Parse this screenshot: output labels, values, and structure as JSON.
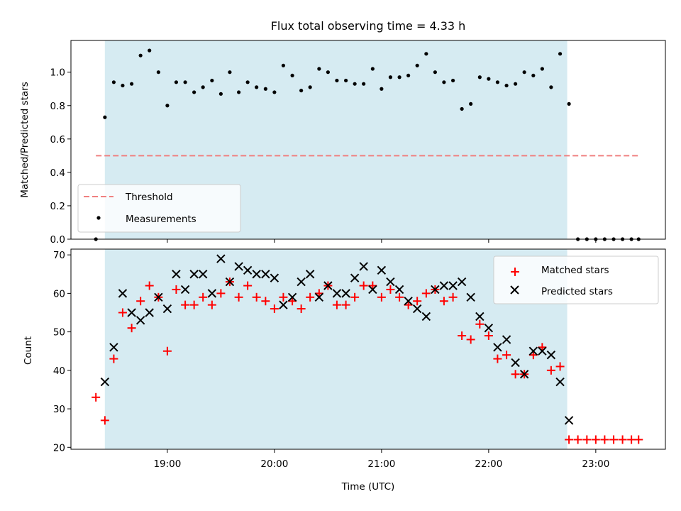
{
  "chart_data": [
    {
      "type": "scatter",
      "title": "Flux total observing time = 4.33 h",
      "xlabel": "",
      "ylabel": "Matched/Predicted stars",
      "xlim": [
        18.1,
        23.65
      ],
      "ylim": [
        0.0,
        1.19
      ],
      "yticks": [
        {
          "value": 0.0,
          "label": "0.0"
        },
        {
          "value": 0.2,
          "label": "0.2"
        },
        {
          "value": 0.4,
          "label": "0.4"
        },
        {
          "value": 0.6,
          "label": "0.6"
        },
        {
          "value": 0.8,
          "label": "0.8"
        },
        {
          "value": 1.0,
          "label": "1.0"
        }
      ],
      "observing_span": [
        18.4167,
        22.7333
      ],
      "span_color": "#add8e6",
      "threshold": {
        "name": "Threshold",
        "value": 0.5,
        "x_range": [
          18.333,
          23.4
        ],
        "color": "#f08080"
      },
      "measurements": {
        "name": "Measurements",
        "color": "#000000",
        "x": [
          18.333,
          18.417,
          18.5,
          18.583,
          18.667,
          18.75,
          18.833,
          18.917,
          19.0,
          19.083,
          19.167,
          19.25,
          19.333,
          19.417,
          19.5,
          19.583,
          19.667,
          19.75,
          19.833,
          19.917,
          20.0,
          20.083,
          20.167,
          20.25,
          20.333,
          20.417,
          20.5,
          20.583,
          20.667,
          20.75,
          20.833,
          20.917,
          21.0,
          21.083,
          21.167,
          21.25,
          21.333,
          21.417,
          21.5,
          21.583,
          21.667,
          21.75,
          21.833,
          21.917,
          22.0,
          22.083,
          22.167,
          22.25,
          22.333,
          22.417,
          22.5,
          22.583,
          22.667,
          22.75,
          22.833,
          22.917,
          23.0,
          23.083,
          23.167,
          23.25,
          23.333,
          23.4
        ],
        "y": [
          0.0,
          0.73,
          0.94,
          0.92,
          0.93,
          1.1,
          1.13,
          1.0,
          0.8,
          0.94,
          0.94,
          0.88,
          0.91,
          0.95,
          0.87,
          1.0,
          0.88,
          0.94,
          0.91,
          0.9,
          0.88,
          1.04,
          0.98,
          0.89,
          0.91,
          1.02,
          1.0,
          0.95,
          0.95,
          0.93,
          0.93,
          1.02,
          0.9,
          0.97,
          0.97,
          0.98,
          1.04,
          1.11,
          1.0,
          0.94,
          0.95,
          0.78,
          0.81,
          0.97,
          0.96,
          0.94,
          0.92,
          0.93,
          1.0,
          0.98,
          1.02,
          0.91,
          1.11,
          0.81,
          0.0,
          0.0,
          0.0,
          0.0,
          0.0,
          0.0,
          0.0,
          0.0
        ]
      },
      "legend": {
        "position": "lower left",
        "entries": [
          "Threshold",
          "Measurements"
        ]
      }
    },
    {
      "type": "scatter",
      "title": "",
      "xlabel": "Time (UTC)",
      "ylabel": "Count",
      "xlim": [
        18.1,
        23.65
      ],
      "ylim": [
        19.5,
        71.5
      ],
      "xticks": [
        {
          "value": 19.0,
          "label": "19:00"
        },
        {
          "value": 20.0,
          "label": "20:00"
        },
        {
          "value": 21.0,
          "label": "21:00"
        },
        {
          "value": 22.0,
          "label": "22:00"
        },
        {
          "value": 23.0,
          "label": "23:00"
        }
      ],
      "yticks": [
        {
          "value": 20,
          "label": "20"
        },
        {
          "value": 30,
          "label": "30"
        },
        {
          "value": 40,
          "label": "40"
        },
        {
          "value": 50,
          "label": "50"
        },
        {
          "value": 60,
          "label": "60"
        },
        {
          "value": 70,
          "label": "70"
        }
      ],
      "observing_span": [
        18.4167,
        22.7333
      ],
      "span_color": "#add8e6",
      "series": [
        {
          "name": "Matched stars",
          "marker": "+",
          "color": "#ff0000",
          "x": [
            18.333,
            18.417,
            18.5,
            18.583,
            18.667,
            18.75,
            18.833,
            18.917,
            19.0,
            19.083,
            19.167,
            19.25,
            19.333,
            19.417,
            19.5,
            19.583,
            19.667,
            19.75,
            19.833,
            19.917,
            20.0,
            20.083,
            20.167,
            20.25,
            20.333,
            20.417,
            20.5,
            20.583,
            20.667,
            20.75,
            20.833,
            20.917,
            21.0,
            21.083,
            21.167,
            21.25,
            21.333,
            21.417,
            21.5,
            21.583,
            21.667,
            21.75,
            21.833,
            21.917,
            22.0,
            22.083,
            22.167,
            22.25,
            22.333,
            22.417,
            22.5,
            22.583,
            22.667,
            22.75,
            22.833,
            22.917,
            23.0,
            23.083,
            23.167,
            23.25,
            23.333,
            23.4
          ],
          "y": [
            33,
            27,
            43,
            55,
            51,
            58,
            62,
            59,
            45,
            61,
            57,
            57,
            59,
            57,
            60,
            63,
            59,
            62,
            59,
            58,
            56,
            59,
            58,
            56,
            59,
            60,
            62,
            57,
            57,
            59,
            62,
            62,
            59,
            61,
            59,
            57,
            58,
            60,
            61,
            58,
            59,
            49,
            48,
            52,
            49,
            43,
            44,
            39,
            39,
            44,
            46,
            40,
            41,
            22,
            22,
            22,
            22,
            22,
            22,
            22,
            22,
            22
          ]
        },
        {
          "name": "Predicted stars",
          "marker": "x",
          "color": "#000000",
          "x": [
            18.417,
            18.5,
            18.583,
            18.667,
            18.75,
            18.833,
            18.917,
            19.0,
            19.083,
            19.167,
            19.25,
            19.333,
            19.417,
            19.5,
            19.583,
            19.667,
            19.75,
            19.833,
            19.917,
            20.0,
            20.083,
            20.167,
            20.25,
            20.333,
            20.417,
            20.5,
            20.583,
            20.667,
            20.75,
            20.833,
            20.917,
            21.0,
            21.083,
            21.167,
            21.25,
            21.333,
            21.417,
            21.5,
            21.583,
            21.667,
            21.75,
            21.833,
            21.917,
            22.0,
            22.083,
            22.167,
            22.25,
            22.333,
            22.417,
            22.5,
            22.583,
            22.667,
            22.75
          ],
          "y": [
            37,
            46,
            60,
            55,
            53,
            55,
            59,
            56,
            65,
            61,
            65,
            65,
            60,
            69,
            63,
            67,
            66,
            65,
            65,
            64,
            57,
            59,
            63,
            65,
            59,
            62,
            60,
            60,
            64,
            67,
            61,
            66,
            63,
            61,
            58,
            56,
            54,
            61,
            62,
            62,
            63,
            59,
            54,
            51,
            46,
            48,
            42,
            39,
            45,
            45,
            44,
            37,
            27
          ]
        }
      ],
      "legend": {
        "position": "upper right",
        "entries": [
          "Matched stars",
          "Predicted stars"
        ]
      }
    }
  ]
}
